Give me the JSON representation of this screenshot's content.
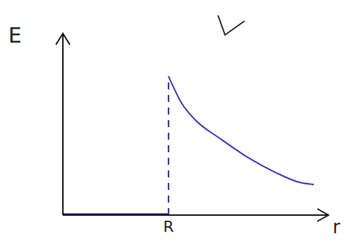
{
  "chart_data": {
    "type": "line",
    "x_label": "r",
    "y_label": "E",
    "xlim": [
      0,
      10
    ],
    "ylim": [
      0,
      10
    ],
    "xticks": [
      {
        "value": 4,
        "label": "R"
      }
    ],
    "yticks": [],
    "tick_labels": "x",
    "grid": false,
    "series": [
      {
        "color": "#24247a",
        "line_style": "solid",
        "x": [
          0,
          4
        ],
        "values": [
          0,
          0
        ]
      },
      {
        "color": "#3535a6",
        "line_style": "solid",
        "x": [
          4,
          4.5,
          5,
          6,
          7,
          8,
          9,
          9.5
        ],
        "values": [
          7.7,
          6.2,
          5.3,
          4.2,
          3.2,
          2.4,
          1.8,
          1.7
        ]
      }
    ]
  }
}
